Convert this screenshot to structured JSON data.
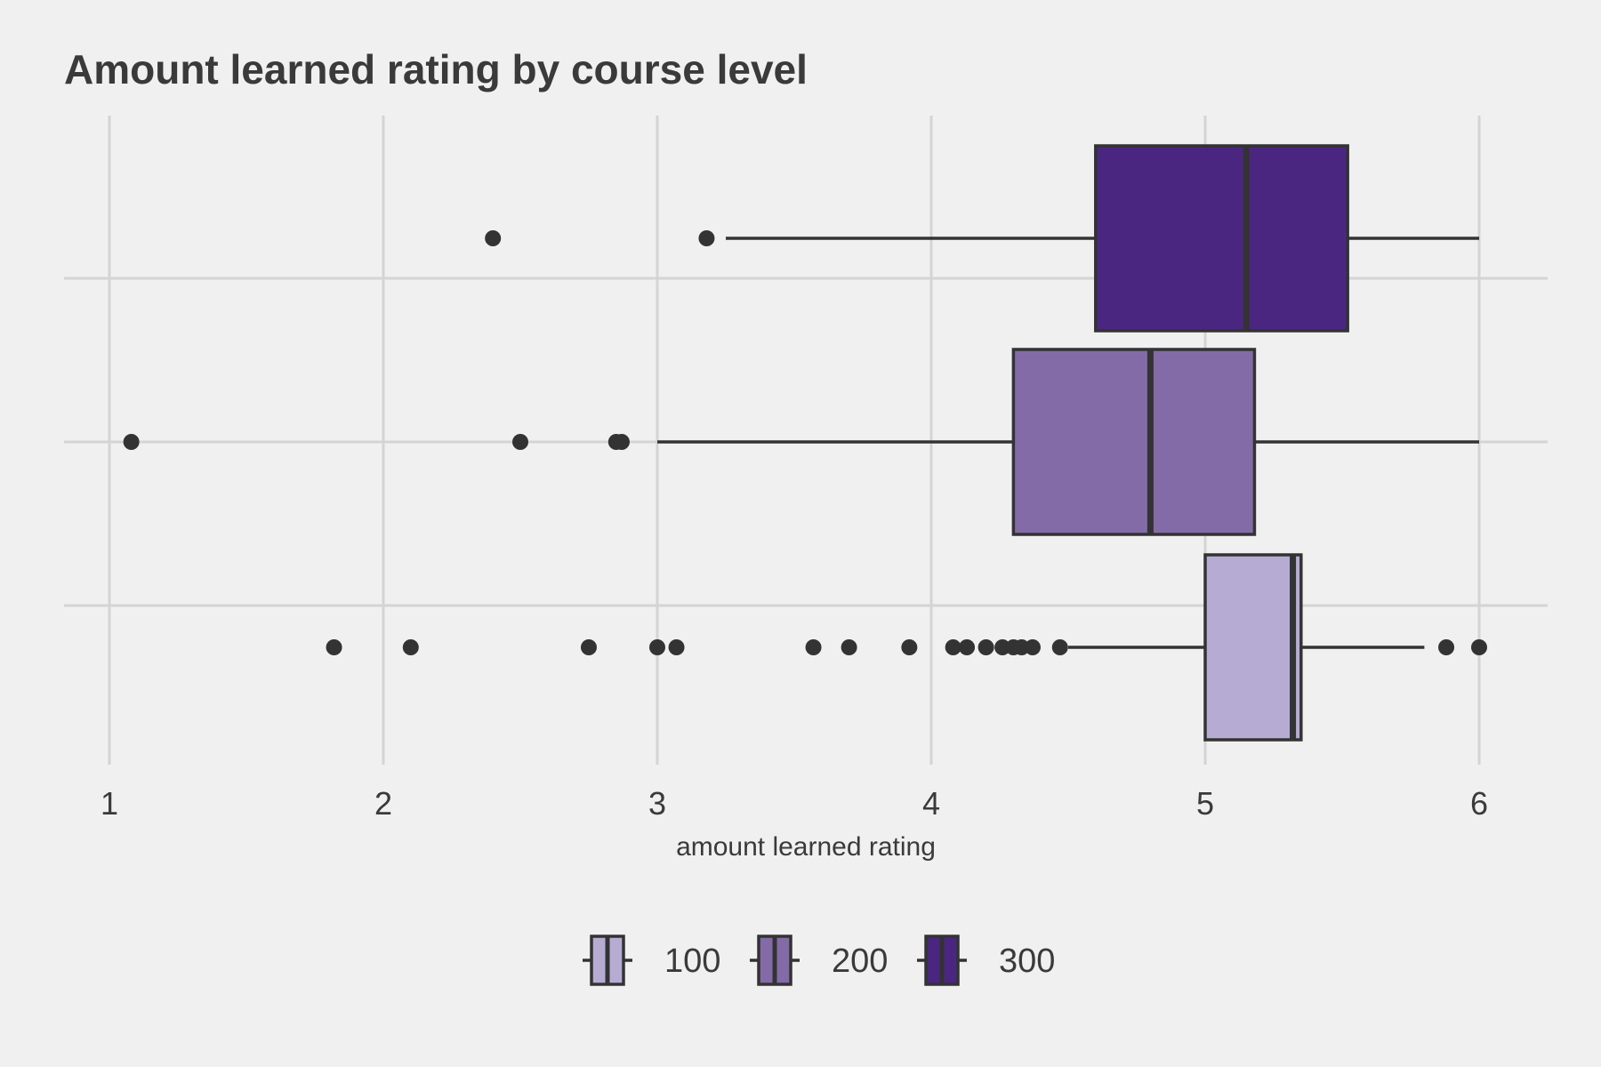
{
  "chart_data": {
    "type": "boxplot",
    "title": "Amount learned rating by course level",
    "xlabel": "amount learned rating",
    "ylabel": "",
    "xlim": [
      0.8,
      6.25
    ],
    "x_ticks": [
      1,
      2,
      3,
      4,
      5,
      6
    ],
    "x_tick_labels": [
      "1",
      "2",
      "3",
      "4",
      "5",
      "6"
    ],
    "grid": true,
    "legend_position": "bottom",
    "series": [
      {
        "name": "100",
        "color": "#b6acd3",
        "whisker_low": 4.5,
        "q1": 5.0,
        "median": 5.32,
        "q3": 5.35,
        "whisker_high": 5.8,
        "outliers": [
          1.82,
          2.1,
          2.75,
          3.0,
          3.07,
          3.57,
          3.7,
          3.92,
          4.08,
          4.13,
          4.2,
          4.26,
          4.3,
          4.33,
          4.37,
          4.47,
          5.88,
          6.0
        ]
      },
      {
        "name": "200",
        "color": "#836ba8",
        "whisker_low": 3.0,
        "q1": 4.3,
        "median": 4.8,
        "q3": 5.18,
        "whisker_high": 6.0,
        "outliers": [
          1.08,
          2.5,
          2.85,
          2.87
        ]
      },
      {
        "name": "300",
        "color": "#4b2681",
        "whisker_low": 3.25,
        "q1": 4.6,
        "median": 5.15,
        "q3": 5.52,
        "whisker_high": 6.0,
        "outliers": [
          2.4,
          3.18
        ]
      }
    ]
  }
}
